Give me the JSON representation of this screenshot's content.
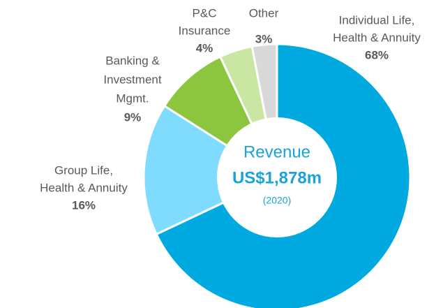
{
  "chart_data": {
    "type": "donut",
    "categories": [
      [
        "Individual Life,",
        "Health & Annuity"
      ],
      [
        "Group Life,",
        "Health & Annuity"
      ],
      [
        "Banking &",
        "Investment",
        "Mgmt."
      ],
      [
        "P&C",
        "Insurance"
      ],
      [
        "Other"
      ]
    ],
    "values": [
      68,
      16,
      9,
      4,
      3
    ],
    "value_labels": [
      "68%",
      "16%",
      "9%",
      "4%",
      "3%"
    ],
    "colors": [
      "#00a9e0",
      "#80dcff",
      "#8cc63f",
      "#c9e6a2",
      "#d9d9d9"
    ],
    "center_text": [
      "Revenue",
      "US$1,878m",
      "(2020)"
    ]
  }
}
